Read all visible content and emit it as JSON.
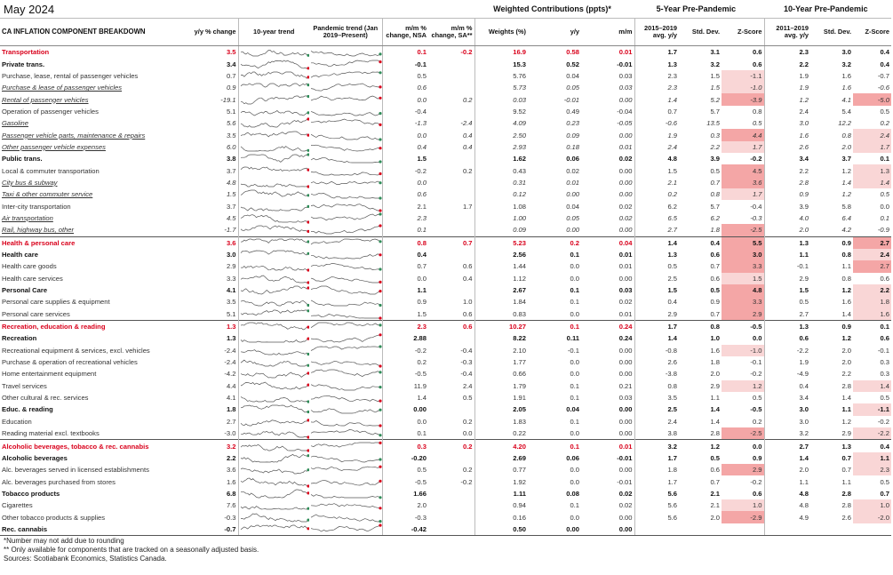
{
  "header": {
    "title": "May 2024",
    "group_weighted": "Weighted Contributions (ppts)*",
    "group_5yr": "5-Year Pre-Pandemic",
    "group_10yr": "10-Year Pre-Pandemic"
  },
  "columns": {
    "label": "CA INFLATION COMPONENT BREAKDOWN",
    "yy": "y/y % change",
    "trend10": "10-year trend",
    "trendp": "Pandemic trend (Jan 2019–Present)",
    "mm_nsa": "m/m % change, NSA",
    "mm_sa": "m/m % change, SA**",
    "weights": "Weights (%)",
    "w_yy": "y/y",
    "w_mm": "m/m",
    "avg5": "2015–2019 avg. y/y",
    "sd5": "Std. Dev.",
    "z5": "Z-Score",
    "avg10": "2011–2019 avg. y/y",
    "sd10": "Std. Dev.",
    "z10": "Z-Score"
  },
  "rows": [
    {
      "t": "major",
      "label": "Transportation",
      "yy": "3.5",
      "nsa": "0.1",
      "sa": "-0.2",
      "w": "16.9",
      "wyy": "0.58",
      "wmm": "0.01",
      "a5": "1.7",
      "s5": "3.1",
      "z5": "0.6",
      "a10": "2.3",
      "s10": "3.0",
      "z10": "0.4"
    },
    {
      "t": "sub",
      "label": "Private trans.",
      "yy": "3.4",
      "nsa": "-0.1",
      "sa": "",
      "w": "15.3",
      "wyy": "0.52",
      "wmm": "-0.01",
      "a5": "1.3",
      "s5": "3.2",
      "z5": "0.6",
      "a10": "2.2",
      "s10": "3.2",
      "z10": "0.4"
    },
    {
      "t": "item",
      "label": "Purchase, lease, rental of passenger vehicles",
      "yy": "0.7",
      "nsa": "0.5",
      "sa": "",
      "w": "5.76",
      "wyy": "0.04",
      "wmm": "0.03",
      "a5": "2.3",
      "s5": "1.5",
      "z5": "-1.1",
      "a10": "1.9",
      "s10": "1.6",
      "z10": "-0.7"
    },
    {
      "t": "item italic",
      "label": "Purchase & lease of passenger vehicles",
      "yy": "0.9",
      "nsa": "0.6",
      "sa": "",
      "w": "5.73",
      "wyy": "0.05",
      "wmm": "0.03",
      "a5": "2.3",
      "s5": "1.5",
      "z5": "-1.0",
      "a10": "1.9",
      "s10": "1.6",
      "z10": "-0.6"
    },
    {
      "t": "item italic",
      "label": "Rental of passenger vehicles",
      "yy": "-19.1",
      "nsa": "0.0",
      "sa": "0.2",
      "w": "0.03",
      "wyy": "-0.01",
      "wmm": "0.00",
      "a5": "1.4",
      "s5": "5.2",
      "z5": "-3.9",
      "a10": "1.2",
      "s10": "4.1",
      "z10": "-5.0"
    },
    {
      "t": "item",
      "label": "Operation of passenger vehicles",
      "yy": "5.1",
      "nsa": "-0.4",
      "sa": "",
      "w": "9.52",
      "wyy": "0.49",
      "wmm": "-0.04",
      "a5": "0.7",
      "s5": "5.7",
      "z5": "0.8",
      "a10": "2.4",
      "s10": "5.4",
      "z10": "0.5"
    },
    {
      "t": "item italic",
      "label": "Gasoline",
      "yy": "5.6",
      "nsa": "-1.3",
      "sa": "-2.4",
      "w": "4.09",
      "wyy": "0.23",
      "wmm": "-0.05",
      "a5": "-0.6",
      "s5": "13.5",
      "z5": "0.5",
      "a10": "3.0",
      "s10": "12.2",
      "z10": "0.2"
    },
    {
      "t": "item italic",
      "label": "Passenger vehicle parts, maintenance & repairs",
      "yy": "3.5",
      "nsa": "0.0",
      "sa": "0.4",
      "w": "2.50",
      "wyy": "0.09",
      "wmm": "0.00",
      "a5": "1.9",
      "s5": "0.3",
      "z5": "4.4",
      "a10": "1.6",
      "s10": "0.8",
      "z10": "2.4"
    },
    {
      "t": "item italic",
      "label": "Other passenger vehicle expenses",
      "yy": "6.0",
      "nsa": "0.4",
      "sa": "0.4",
      "w": "2.93",
      "wyy": "0.18",
      "wmm": "0.01",
      "a5": "2.4",
      "s5": "2.2",
      "z5": "1.7",
      "a10": "2.6",
      "s10": "2.0",
      "z10": "1.7"
    },
    {
      "t": "sub",
      "label": "Public trans.",
      "yy": "3.8",
      "nsa": "1.5",
      "sa": "",
      "w": "1.62",
      "wyy": "0.06",
      "wmm": "0.02",
      "a5": "4.8",
      "s5": "3.9",
      "z5": "-0.2",
      "a10": "3.4",
      "s10": "3.7",
      "z10": "0.1"
    },
    {
      "t": "item",
      "label": "Local & commuter transportation",
      "yy": "3.7",
      "nsa": "-0.2",
      "sa": "0.2",
      "w": "0.43",
      "wyy": "0.02",
      "wmm": "0.00",
      "a5": "1.5",
      "s5": "0.5",
      "z5": "4.5",
      "a10": "2.2",
      "s10": "1.2",
      "z10": "1.3"
    },
    {
      "t": "item italic",
      "label": "City bus & subway",
      "yy": "4.8",
      "nsa": "0.0",
      "sa": "",
      "w": "0.31",
      "wyy": "0.01",
      "wmm": "0.00",
      "a5": "2.1",
      "s5": "0.7",
      "z5": "3.6",
      "a10": "2.8",
      "s10": "1.4",
      "z10": "1.4"
    },
    {
      "t": "item italic",
      "label": "Taxi & other commuter service",
      "yy": "1.5",
      "nsa": "0.6",
      "sa": "",
      "w": "0.12",
      "wyy": "0.00",
      "wmm": "0.00",
      "a5": "0.2",
      "s5": "0.8",
      "z5": "1.7",
      "a10": "0.9",
      "s10": "1.2",
      "z10": "0.5"
    },
    {
      "t": "item",
      "label": "Inter-city transportation",
      "yy": "3.7",
      "nsa": "2.1",
      "sa": "1.7",
      "w": "1.08",
      "wyy": "0.04",
      "wmm": "0.02",
      "a5": "6.2",
      "s5": "5.7",
      "z5": "-0.4",
      "a10": "3.9",
      "s10": "5.8",
      "z10": "0.0"
    },
    {
      "t": "item italic",
      "label": "Air transportation",
      "yy": "4.5",
      "nsa": "2.3",
      "sa": "",
      "w": "1.00",
      "wyy": "0.05",
      "wmm": "0.02",
      "a5": "6.5",
      "s5": "6.2",
      "z5": "-0.3",
      "a10": "4.0",
      "s10": "6.4",
      "z10": "0.1"
    },
    {
      "t": "item italic",
      "label": "Rail, highway bus, other",
      "yy": "-1.7",
      "nsa": "0.1",
      "sa": "",
      "w": "0.09",
      "wyy": "0.00",
      "wmm": "0.00",
      "a5": "2.7",
      "s5": "1.8",
      "z5": "-2.5",
      "a10": "2.0",
      "s10": "4.2",
      "z10": "-0.9"
    },
    {
      "t": "major",
      "label": "Health & personal care",
      "yy": "3.6",
      "nsa": "0.8",
      "sa": "0.7",
      "w": "5.23",
      "wyy": "0.2",
      "wmm": "0.04",
      "a5": "1.4",
      "s5": "0.4",
      "z5": "5.5",
      "a10": "1.3",
      "s10": "0.9",
      "z10": "2.7"
    },
    {
      "t": "sub",
      "label": "Health care",
      "yy": "3.0",
      "nsa": "0.4",
      "sa": "",
      "w": "2.56",
      "wyy": "0.1",
      "wmm": "0.01",
      "a5": "1.3",
      "s5": "0.6",
      "z5": "3.0",
      "a10": "1.1",
      "s10": "0.8",
      "z10": "2.4"
    },
    {
      "t": "item",
      "label": "Health care goods",
      "yy": "2.9",
      "nsa": "0.7",
      "sa": "0.6",
      "w": "1.44",
      "wyy": "0.0",
      "wmm": "0.01",
      "a5": "0.5",
      "s5": "0.7",
      "z5": "3.3",
      "a10": "-0.1",
      "s10": "1.1",
      "z10": "2.7"
    },
    {
      "t": "item",
      "label": "Health care services",
      "yy": "3.3",
      "nsa": "0.0",
      "sa": "0.4",
      "w": "1.12",
      "wyy": "0.0",
      "wmm": "0.00",
      "a5": "2.5",
      "s5": "0.6",
      "z5": "1.5",
      "a10": "2.9",
      "s10": "0.8",
      "z10": "0.6"
    },
    {
      "t": "sub",
      "label": "Personal Care",
      "yy": "4.1",
      "nsa": "1.1",
      "sa": "",
      "w": "2.67",
      "wyy": "0.1",
      "wmm": "0.03",
      "a5": "1.5",
      "s5": "0.5",
      "z5": "4.8",
      "a10": "1.5",
      "s10": "1.2",
      "z10": "2.2"
    },
    {
      "t": "item",
      "label": "Personal care supplies & equipment",
      "yy": "3.5",
      "nsa": "0.9",
      "sa": "1.0",
      "w": "1.84",
      "wyy": "0.1",
      "wmm": "0.02",
      "a5": "0.4",
      "s5": "0.9",
      "z5": "3.3",
      "a10": "0.5",
      "s10": "1.6",
      "z10": "1.8"
    },
    {
      "t": "item",
      "label": "Personal care services",
      "yy": "5.1",
      "nsa": "1.5",
      "sa": "0.6",
      "w": "0.83",
      "wyy": "0.0",
      "wmm": "0.01",
      "a5": "2.9",
      "s5": "0.7",
      "z5": "2.9",
      "a10": "2.7",
      "s10": "1.4",
      "z10": "1.6"
    },
    {
      "t": "major",
      "label": "Recreation, education & reading",
      "yy": "1.3",
      "nsa": "2.3",
      "sa": "0.6",
      "w": "10.27",
      "wyy": "0.1",
      "wmm": "0.24",
      "a5": "1.7",
      "s5": "0.8",
      "z5": "-0.5",
      "a10": "1.3",
      "s10": "0.9",
      "z10": "0.1"
    },
    {
      "t": "sub",
      "label": "Recreation",
      "yy": "1.3",
      "nsa": "2.88",
      "sa": "",
      "w": "8.22",
      "wyy": "0.11",
      "wmm": "0.24",
      "a5": "1.4",
      "s5": "1.0",
      "z5": "0.0",
      "a10": "0.6",
      "s10": "1.2",
      "z10": "0.6"
    },
    {
      "t": "item",
      "label": "Recreational equipment & services, excl. vehicles",
      "yy": "-2.4",
      "nsa": "-0.2",
      "sa": "-0.4",
      "w": "2.10",
      "wyy": "-0.1",
      "wmm": "0.00",
      "a5": "-0.8",
      "s5": "1.6",
      "z5": "-1.0",
      "a10": "-2.2",
      "s10": "2.0",
      "z10": "-0.1"
    },
    {
      "t": "item",
      "label": "Purchase & operation of recreational vehicles",
      "yy": "-2.4",
      "nsa": "0.2",
      "sa": "-0.3",
      "w": "1.77",
      "wyy": "0.0",
      "wmm": "0.00",
      "a5": "2.6",
      "s5": "1.8",
      "z5": "-0.1",
      "a10": "1.9",
      "s10": "2.0",
      "z10": "0.3"
    },
    {
      "t": "item",
      "label": "Home entertainment equipment",
      "yy": "-4.2",
      "nsa": "-0.5",
      "sa": "-0.4",
      "w": "0.66",
      "wyy": "0.0",
      "wmm": "0.00",
      "a5": "-3.8",
      "s5": "2.0",
      "z5": "-0.2",
      "a10": "-4.9",
      "s10": "2.2",
      "z10": "0.3"
    },
    {
      "t": "item",
      "label": "Travel services",
      "yy": "4.4",
      "nsa": "11.9",
      "sa": "2.4",
      "w": "1.79",
      "wyy": "0.1",
      "wmm": "0.21",
      "a5": "0.8",
      "s5": "2.9",
      "z5": "1.2",
      "a10": "0.4",
      "s10": "2.8",
      "z10": "1.4"
    },
    {
      "t": "item",
      "label": "Other cultural & rec. services",
      "yy": "4.1",
      "nsa": "1.4",
      "sa": "0.5",
      "w": "1.91",
      "wyy": "0.1",
      "wmm": "0.03",
      "a5": "3.5",
      "s5": "1.1",
      "z5": "0.5",
      "a10": "3.4",
      "s10": "1.4",
      "z10": "0.5"
    },
    {
      "t": "sub",
      "label": "Educ. & reading",
      "yy": "1.8",
      "nsa": "0.00",
      "sa": "",
      "w": "2.05",
      "wyy": "0.04",
      "wmm": "0.00",
      "a5": "2.5",
      "s5": "1.4",
      "z5": "-0.5",
      "a10": "3.0",
      "s10": "1.1",
      "z10": "-1.1"
    },
    {
      "t": "item",
      "label": "Education",
      "yy": "2.7",
      "nsa": "0.0",
      "sa": "0.2",
      "w": "1.83",
      "wyy": "0.1",
      "wmm": "0.00",
      "a5": "2.4",
      "s5": "1.4",
      "z5": "0.2",
      "a10": "3.0",
      "s10": "1.2",
      "z10": "-0.2"
    },
    {
      "t": "item",
      "label": "Reading material excl. textbooks",
      "yy": "-3.0",
      "nsa": "0.1",
      "sa": "0.0",
      "w": "0.22",
      "wyy": "0.0",
      "wmm": "0.00",
      "a5": "3.8",
      "s5": "2.8",
      "z5": "-2.5",
      "a10": "3.2",
      "s10": "2.9",
      "z10": "-2.2"
    },
    {
      "t": "major",
      "label": "Alcoholic beverages, tobacco & rec. cannabis",
      "yy": "3.2",
      "nsa": "0.3",
      "sa": "0.2",
      "w": "4.20",
      "wyy": "0.1",
      "wmm": "0.01",
      "a5": "3.2",
      "s5": "1.2",
      "z5": "0.0",
      "a10": "2.7",
      "s10": "1.3",
      "z10": "0.4"
    },
    {
      "t": "sub",
      "label": "Alcoholic beverages",
      "yy": "2.2",
      "nsa": "-0.20",
      "sa": "",
      "w": "2.69",
      "wyy": "0.06",
      "wmm": "-0.01",
      "a5": "1.7",
      "s5": "0.5",
      "z5": "0.9",
      "a10": "1.4",
      "s10": "0.7",
      "z10": "1.1"
    },
    {
      "t": "item",
      "label": "Alc. beverages served in licensed establishments",
      "yy": "3.6",
      "nsa": "0.5",
      "sa": "0.2",
      "w": "0.77",
      "wyy": "0.0",
      "wmm": "0.00",
      "a5": "1.8",
      "s5": "0.6",
      "z5": "2.9",
      "a10": "2.0",
      "s10": "0.7",
      "z10": "2.3"
    },
    {
      "t": "item",
      "label": "Alc. beverages purchased from stores",
      "yy": "1.6",
      "nsa": "-0.5",
      "sa": "-0.2",
      "w": "1.92",
      "wyy": "0.0",
      "wmm": "-0.01",
      "a5": "1.7",
      "s5": "0.7",
      "z5": "-0.2",
      "a10": "1.1",
      "s10": "1.1",
      "z10": "0.5"
    },
    {
      "t": "sub",
      "label": "Tobacco products",
      "yy": "6.8",
      "nsa": "1.66",
      "sa": "",
      "w": "1.11",
      "wyy": "0.08",
      "wmm": "0.02",
      "a5": "5.6",
      "s5": "2.1",
      "z5": "0.6",
      "a10": "4.8",
      "s10": "2.8",
      "z10": "0.7"
    },
    {
      "t": "item",
      "label": "Cigarettes",
      "yy": "7.6",
      "nsa": "2.0",
      "sa": "",
      "w": "0.94",
      "wyy": "0.1",
      "wmm": "0.02",
      "a5": "5.6",
      "s5": "2.1",
      "z5": "1.0",
      "a10": "4.8",
      "s10": "2.8",
      "z10": "1.0"
    },
    {
      "t": "item",
      "label": "Other tobacco products & supplies",
      "yy": "-0.3",
      "nsa": "-0.3",
      "sa": "",
      "w": "0.16",
      "wyy": "0.0",
      "wmm": "0.00",
      "a5": "5.6",
      "s5": "2.0",
      "z5": "-2.9",
      "a10": "4.9",
      "s10": "2.6",
      "z10": "-2.0"
    },
    {
      "t": "sub",
      "label": "Rec. cannabis",
      "yy": "-0.7",
      "nsa": "-0.42",
      "sa": "",
      "w": "0.50",
      "wyy": "0.00",
      "wmm": "0.00",
      "a5": "",
      "s5": "",
      "z5": "",
      "a10": "",
      "s10": "",
      "z10": ""
    }
  ],
  "footer": {
    "note1": "*Number may not add due to rounding",
    "note2": "** Only available for components that are tracked on a seasonally adjusted basis.",
    "sources": "Sources: Scotiabank Economics, Statistics Canada."
  },
  "colors": {
    "accent": "#d9001b",
    "zscore_highlight": "#f4a6a6",
    "spark_marker_pos": "#2e8b57",
    "spark_marker_neg": "#d9001b"
  }
}
